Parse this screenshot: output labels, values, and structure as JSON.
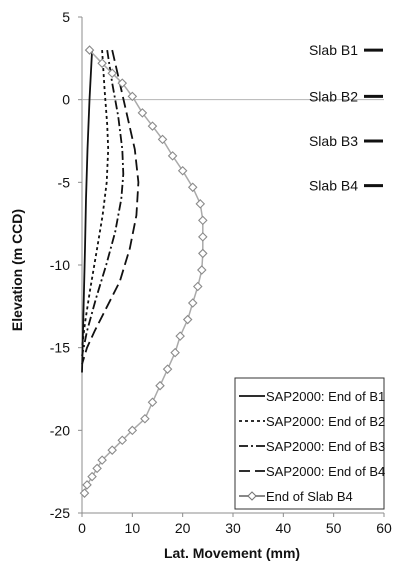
{
  "chart_data": {
    "type": "line",
    "xlabel": "Lat. Movement (mm)",
    "ylabel": "Elevation (m CCD)",
    "xlim": [
      0,
      60
    ],
    "ylim": [
      -25,
      5
    ],
    "x_ticks": [
      0,
      10,
      20,
      30,
      40,
      50,
      60
    ],
    "y_ticks": [
      5,
      0,
      -5,
      -10,
      -15,
      -20,
      -25
    ],
    "grid": "y=0 reference line only",
    "legend_position": "bottom-right",
    "slab_markers": [
      {
        "label": "Slab B1",
        "elevation": 3.0
      },
      {
        "label": "Slab B2",
        "elevation": 0.2
      },
      {
        "label": "Slab B3",
        "elevation": -2.5
      },
      {
        "label": "Slab B4",
        "elevation": -5.2
      }
    ],
    "series": [
      {
        "name": "SAP2000: End of B1",
        "style": "solid",
        "color": "#111111",
        "points": [
          [
            2,
            3
          ],
          [
            1.5,
            0
          ],
          [
            1.1,
            -3
          ],
          [
            0.8,
            -6
          ],
          [
            0.6,
            -9
          ],
          [
            0.35,
            -12
          ],
          [
            0.15,
            -14.5
          ],
          [
            0,
            -16.5
          ]
        ]
      },
      {
        "name": "SAP2000: End of B2",
        "style": "short-dash",
        "color": "#111111",
        "points": [
          [
            4,
            3
          ],
          [
            4.5,
            0.5
          ],
          [
            5,
            -1.5
          ],
          [
            5.2,
            -3
          ],
          [
            4.9,
            -5
          ],
          [
            4.1,
            -7
          ],
          [
            3,
            -9
          ],
          [
            1.6,
            -11.5
          ],
          [
            0.6,
            -13.5
          ],
          [
            0,
            -15
          ]
        ]
      },
      {
        "name": "SAP2000: End of B3",
        "style": "dash-dot",
        "color": "#111111",
        "points": [
          [
            5,
            3
          ],
          [
            6,
            1
          ],
          [
            7.2,
            -1
          ],
          [
            8,
            -3
          ],
          [
            8.2,
            -4.5
          ],
          [
            7.8,
            -6
          ],
          [
            6.6,
            -8
          ],
          [
            4.8,
            -10
          ],
          [
            2.8,
            -12
          ],
          [
            1,
            -14
          ],
          [
            0,
            -15.5
          ]
        ]
      },
      {
        "name": "SAP2000: End of B4",
        "style": "long-dash",
        "color": "#111111",
        "points": [
          [
            6,
            3
          ],
          [
            7.5,
            1
          ],
          [
            9,
            -1
          ],
          [
            10.5,
            -3
          ],
          [
            11.2,
            -5
          ],
          [
            10.8,
            -7
          ],
          [
            9.5,
            -9
          ],
          [
            7.5,
            -11
          ],
          [
            5,
            -12.5
          ],
          [
            2.5,
            -14
          ],
          [
            1,
            -15
          ],
          [
            0,
            -16
          ]
        ]
      },
      {
        "name": "End of Slab B4",
        "style": "solid-diamond",
        "color": "#aaaaaa",
        "points": [
          [
            1.5,
            3
          ],
          [
            4,
            2.2
          ],
          [
            6,
            1.6
          ],
          [
            8,
            1
          ],
          [
            10,
            0.2
          ],
          [
            12,
            -0.8
          ],
          [
            14,
            -1.6
          ],
          [
            16,
            -2.4
          ],
          [
            18,
            -3.4
          ],
          [
            20,
            -4.3
          ],
          [
            22,
            -5.3
          ],
          [
            23.5,
            -6.3
          ],
          [
            24,
            -7.3
          ],
          [
            24,
            -8.3
          ],
          [
            24,
            -9.3
          ],
          [
            23.8,
            -10.3
          ],
          [
            23,
            -11.3
          ],
          [
            22,
            -12.3
          ],
          [
            21,
            -13.3
          ],
          [
            19.5,
            -14.3
          ],
          [
            18.5,
            -15.3
          ],
          [
            17,
            -16.3
          ],
          [
            15.5,
            -17.3
          ],
          [
            14,
            -18.3
          ],
          [
            12.5,
            -19.3
          ],
          [
            10,
            -20
          ],
          [
            8,
            -20.6
          ],
          [
            6,
            -21.2
          ],
          [
            4,
            -21.8
          ],
          [
            3,
            -22.3
          ],
          [
            2,
            -22.8
          ],
          [
            1,
            -23.3
          ],
          [
            0.5,
            -23.8
          ]
        ]
      }
    ]
  }
}
